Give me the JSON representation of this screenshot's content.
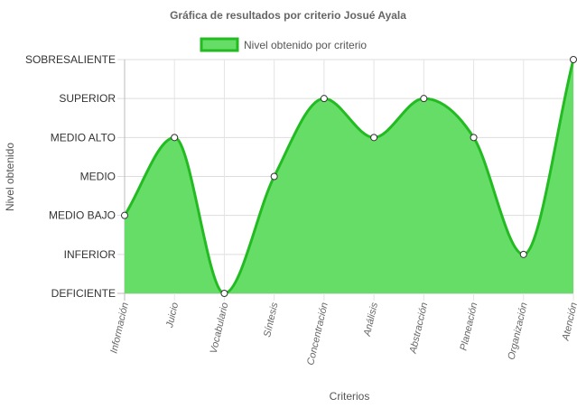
{
  "chart_data": {
    "type": "area",
    "title": "Gráfica de resultados por criterio Josué Ayala",
    "xlabel": "Criterios",
    "ylabel": "Nivel obtenido",
    "categories": [
      "Información",
      "Juicio",
      "Vocabulario",
      "Síntesis",
      "Concentración",
      "Análisis",
      "Abstracción",
      "Planeación",
      "Organización",
      "Atención"
    ],
    "y_levels": [
      "DEFICIENTE",
      "INFERIOR",
      "MEDIO BAJO",
      "MEDIO",
      "MEDIO ALTO",
      "SUPERIOR",
      "SOBRESALIENTE"
    ],
    "series": [
      {
        "name": "Nivel obtenido por criterio",
        "values": [
          "MEDIO BAJO",
          "MEDIO ALTO",
          "DEFICIENTE",
          "MEDIO",
          "SUPERIOR",
          "MEDIO ALTO",
          "SUPERIOR",
          "MEDIO ALTO",
          "INFERIOR",
          "SOBRESALIENTE"
        ],
        "fill_color": "#66dd66",
        "line_color": "#22bb22"
      }
    ],
    "legend_position": "top",
    "grid": true
  }
}
